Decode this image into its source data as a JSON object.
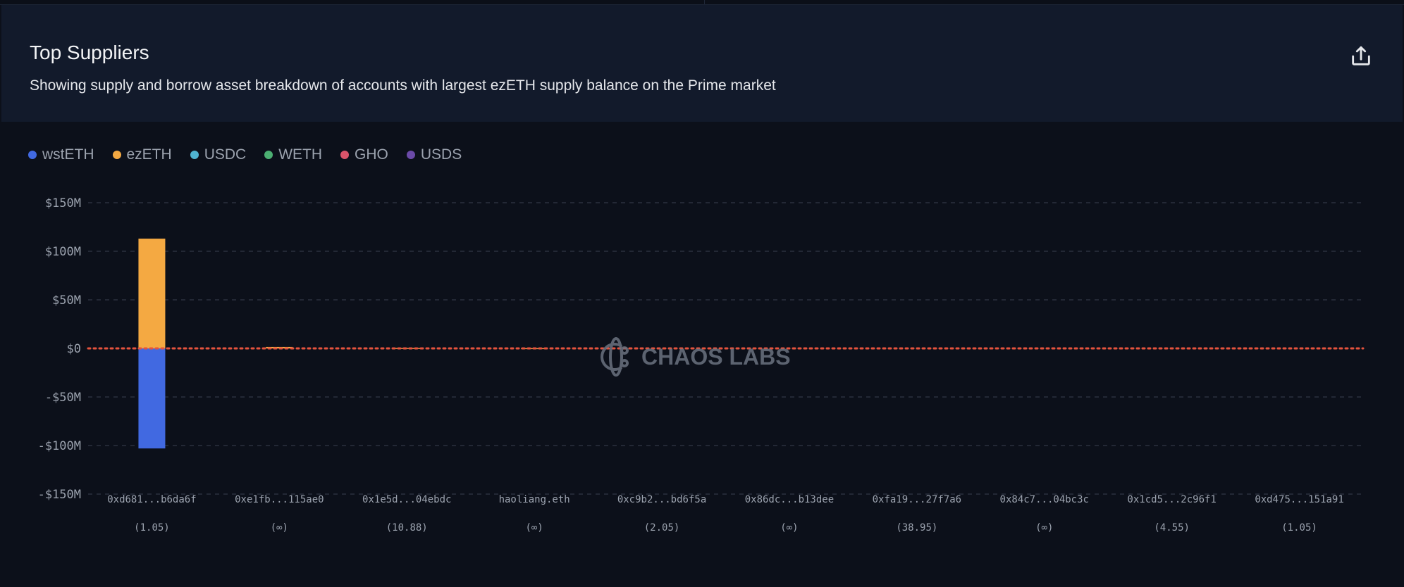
{
  "header": {
    "title": "Top Suppliers",
    "subtitle": "Showing supply and borrow asset breakdown of accounts with largest ezETH supply balance on the Prime market",
    "export_icon": "share-export-icon"
  },
  "watermark": "CHAOS LABS",
  "chart_data": {
    "type": "bar",
    "stacked": true,
    "title": "",
    "xlabel": "",
    "ylabel": "",
    "ylim": [
      -150000000,
      150000000
    ],
    "yticks": [
      150000000,
      100000000,
      50000000,
      0,
      -50000000,
      -100000000,
      -150000000
    ],
    "ytick_labels": [
      "$150M",
      "$100M",
      "$50M",
      "$0",
      "-$50M",
      "-$100M",
      "-$150M"
    ],
    "grid": true,
    "legend_placement": "top-left",
    "categories": [
      "0xd681...b6da6f",
      "0xe1fb...115ae0",
      "0x1e5d...04ebdc",
      "haoliang.eth",
      "0xc9b2...bd6f5a",
      "0x86dc...b13dee",
      "0xfa19...27f7a6",
      "0x84c7...04bc3c",
      "0x1cd5...2c96f1",
      "0xd475...151a91"
    ],
    "category_sublabels": [
      "(1.05)",
      "(∞)",
      "(10.88)",
      "(∞)",
      "(2.05)",
      "(∞)",
      "(38.95)",
      "(∞)",
      "(4.55)",
      "(1.05)"
    ],
    "series": [
      {
        "name": "wstETH",
        "color": "#4169e1",
        "values": [
          -103000000,
          0,
          0,
          0,
          0,
          0,
          0,
          0,
          0,
          0
        ]
      },
      {
        "name": "ezETH",
        "color": "#f4a942",
        "values": [
          113000000,
          1500000,
          500000,
          300000,
          0,
          0,
          0,
          0,
          0,
          0
        ]
      },
      {
        "name": "USDC",
        "color": "#4fb3d1",
        "values": [
          0,
          0,
          0,
          0,
          0,
          0,
          0,
          0,
          0,
          0
        ]
      },
      {
        "name": "WETH",
        "color": "#4caf72",
        "values": [
          0,
          0,
          0,
          0,
          0,
          0,
          0,
          0,
          0,
          0
        ]
      },
      {
        "name": "GHO",
        "color": "#d9546a",
        "values": [
          0,
          0,
          0,
          0,
          0,
          0,
          0,
          0,
          0,
          0
        ]
      },
      {
        "name": "USDS",
        "color": "#6b4aa8",
        "values": [
          0,
          0,
          0,
          0,
          0,
          0,
          0,
          0,
          0,
          0
        ]
      }
    ],
    "reference_line": {
      "value": 0,
      "color": "#e5533d",
      "style": "dotted"
    }
  }
}
